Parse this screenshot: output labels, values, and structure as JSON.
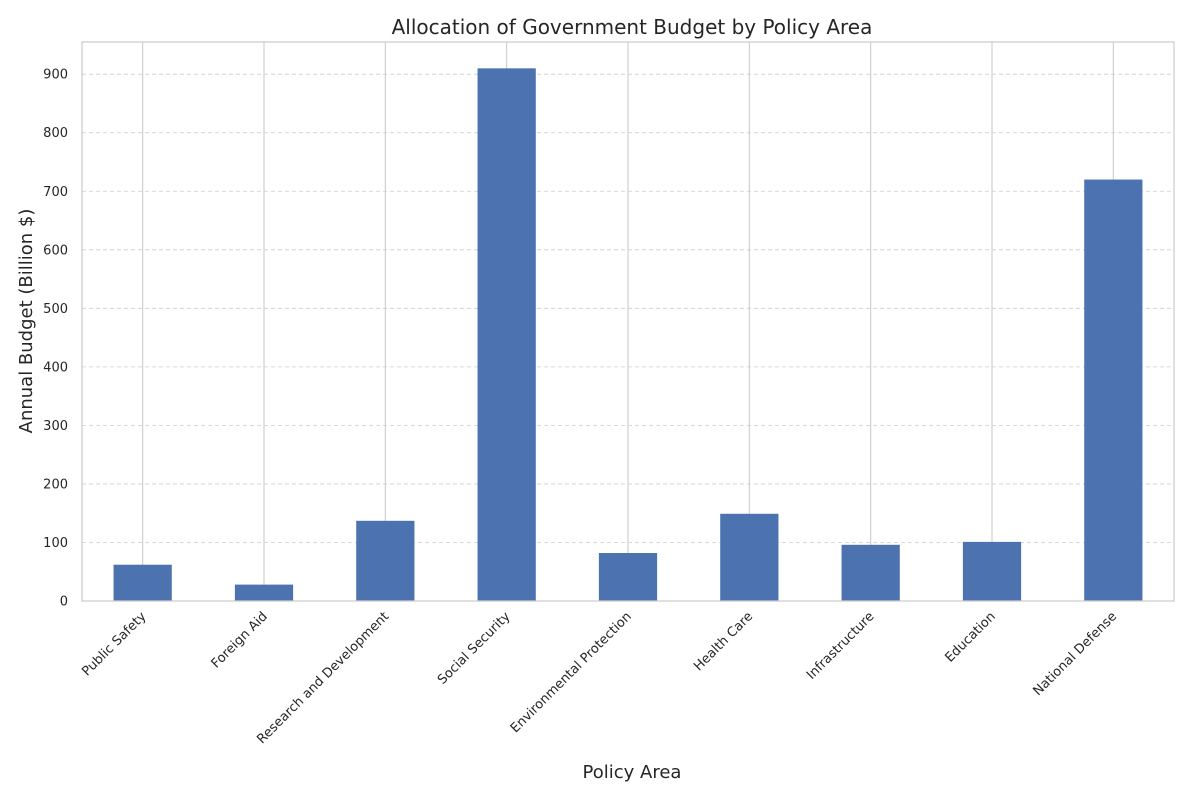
{
  "chart_data": {
    "type": "bar",
    "title": "Allocation of Government Budget by Policy Area",
    "xlabel": "Policy Area",
    "ylabel": "Annual Budget (Billion $)",
    "categories": [
      "Public Safety",
      "Foreign Aid",
      "Research and Development",
      "Social Security",
      "Environmental Protection",
      "Health Care",
      "Infrastructure",
      "Education",
      "National Defense"
    ],
    "values": [
      62,
      28,
      137,
      910,
      82,
      149,
      96,
      101,
      720
    ],
    "ylim": [
      0,
      955
    ],
    "yticks": [
      0,
      100,
      200,
      300,
      400,
      500,
      600,
      700,
      800,
      900
    ],
    "grid": true,
    "legend": "none",
    "bar_color": "#4c72b0",
    "grid_color": "#cccccc"
  }
}
